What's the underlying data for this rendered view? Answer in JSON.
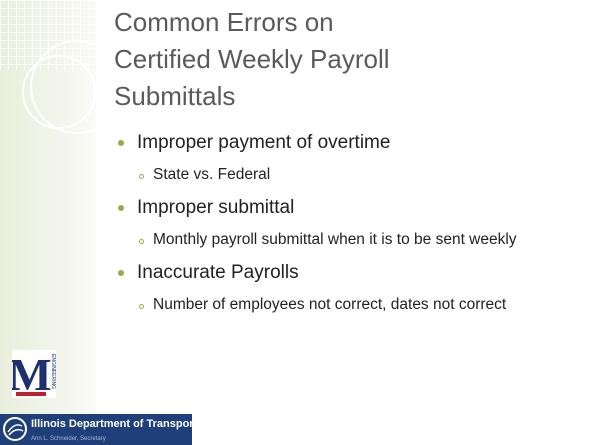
{
  "title": [
    "Common Errors on",
    "Certified Weekly Payroll",
    "Submittals"
  ],
  "bullets": [
    {
      "text": "Improper payment of overtime",
      "sub": [
        "State vs. Federal"
      ]
    },
    {
      "text": "Improper submittal",
      "sub": [
        "Monthly payroll submittal when it is to be sent weekly"
      ]
    },
    {
      "text": "Inaccurate Payrolls",
      "sub": [
        "Number of employees not correct, dates not correct"
      ]
    }
  ],
  "logo": {
    "letter": "M",
    "word": "ENGINEERING"
  },
  "banner": {
    "name": "Illinois Department of Transportation",
    "secretary": "Ann L. Schneider, Secretary"
  }
}
